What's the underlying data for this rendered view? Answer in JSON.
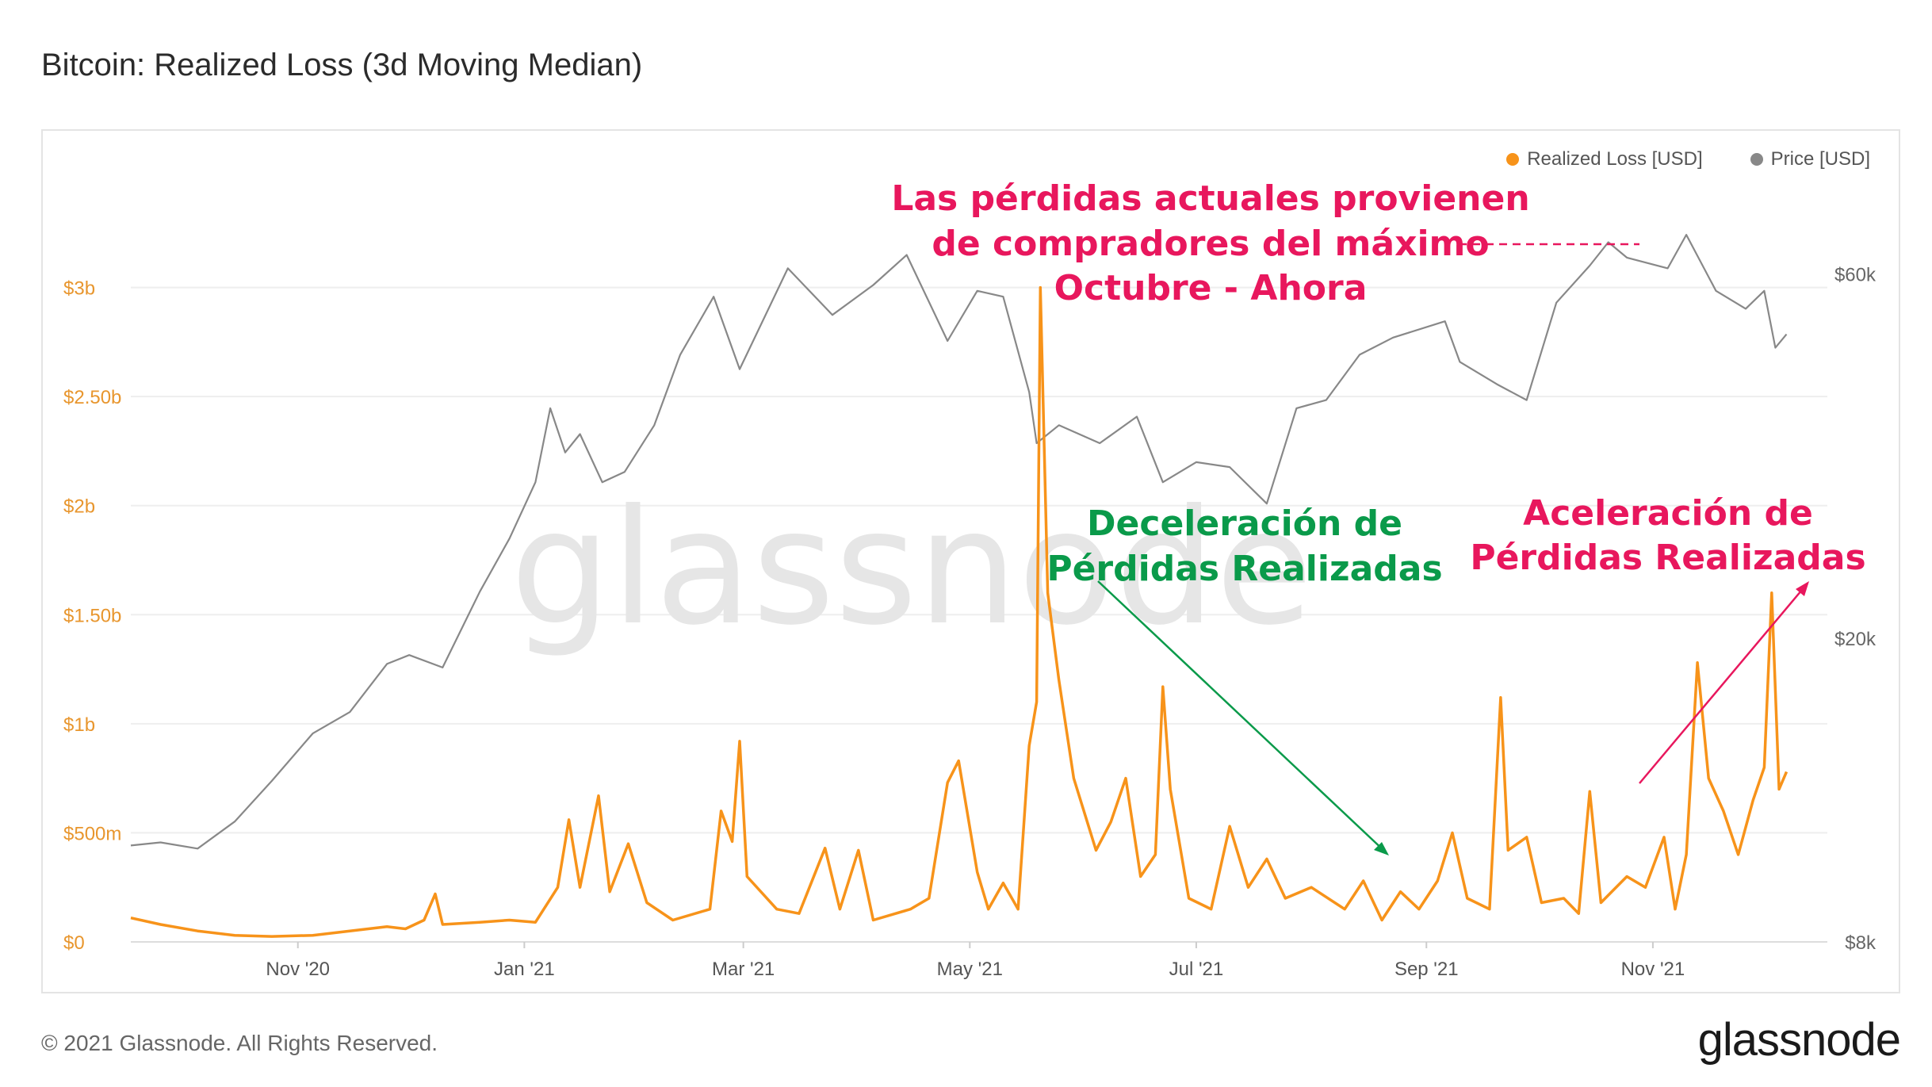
{
  "title": "Bitcoin: Realized Loss (3d Moving Median)",
  "footer": "© 2021 Glassnode. All Rights Reserved.",
  "brand": "glassnode",
  "watermark": "glassnode",
  "legend": [
    {
      "label": "Realized Loss [USD]",
      "color": "#f7931a"
    },
    {
      "label": "Price [USD]",
      "color": "#888888"
    }
  ],
  "annotations": {
    "top_red": [
      "Las pérdidas actuales provienen",
      "de compradores del máximo",
      "Octubre - Ahora"
    ],
    "green": [
      "Deceleración de",
      "Pérdidas Realizadas"
    ],
    "right_red": [
      "Aceleración de",
      "Pérdidas Realizadas"
    ]
  },
  "chart_data": {
    "type": "line",
    "title": "Bitcoin: Realized Loss (3d Moving Median)",
    "x_range": [
      "2020-09-17",
      "2021-12-18"
    ],
    "x_ticks": [
      {
        "label": "Nov '20",
        "date": "2020-11-01"
      },
      {
        "label": "Jan '21",
        "date": "2021-01-01"
      },
      {
        "label": "Mar '21",
        "date": "2021-03-01"
      },
      {
        "label": "May '21",
        "date": "2021-05-01"
      },
      {
        "label": "Jul '21",
        "date": "2021-07-01"
      },
      {
        "label": "Sep '21",
        "date": "2021-09-01"
      },
      {
        "label": "Nov '21",
        "date": "2021-11-01"
      }
    ],
    "y_left": {
      "ylim": [
        0,
        3500000000
      ],
      "ticks": [
        {
          "label": "$0",
          "value": 0
        },
        {
          "label": "$500m",
          "value": 500000000
        },
        {
          "label": "$1b",
          "value": 1000000000
        },
        {
          "label": "$1.50b",
          "value": 1500000000
        },
        {
          "label": "$2b",
          "value": 2000000000
        },
        {
          "label": "$2.50b",
          "value": 2500000000
        },
        {
          "label": "$3b",
          "value": 3000000000
        }
      ]
    },
    "y_right": {
      "scale": "log",
      "ylim": [
        8000,
        80000
      ],
      "ticks": [
        {
          "label": "$8k",
          "value": 8000
        },
        {
          "label": "$20k",
          "value": 20000
        },
        {
          "label": "$60k",
          "value": 60000
        }
      ]
    },
    "series": [
      {
        "name": "Realized Loss [USD]",
        "axis": "left",
        "color": "#f7931a",
        "points": [
          [
            "2020-09-17",
            110000000
          ],
          [
            "2020-09-25",
            80000000
          ],
          [
            "2020-10-05",
            50000000
          ],
          [
            "2020-10-15",
            30000000
          ],
          [
            "2020-10-25",
            25000000
          ],
          [
            "2020-11-05",
            30000000
          ],
          [
            "2020-11-15",
            50000000
          ],
          [
            "2020-11-25",
            70000000
          ],
          [
            "2020-11-30",
            60000000
          ],
          [
            "2020-12-05",
            100000000
          ],
          [
            "2020-12-08",
            220000000
          ],
          [
            "2020-12-10",
            80000000
          ],
          [
            "2020-12-20",
            90000000
          ],
          [
            "2020-12-28",
            100000000
          ],
          [
            "2021-01-04",
            90000000
          ],
          [
            "2021-01-10",
            250000000
          ],
          [
            "2021-01-13",
            560000000
          ],
          [
            "2021-01-16",
            250000000
          ],
          [
            "2021-01-21",
            670000000
          ],
          [
            "2021-01-24",
            230000000
          ],
          [
            "2021-01-29",
            450000000
          ],
          [
            "2021-02-03",
            180000000
          ],
          [
            "2021-02-10",
            100000000
          ],
          [
            "2021-02-20",
            150000000
          ],
          [
            "2021-02-23",
            600000000
          ],
          [
            "2021-02-26",
            460000000
          ],
          [
            "2021-02-28",
            920000000
          ],
          [
            "2021-03-02",
            300000000
          ],
          [
            "2021-03-10",
            150000000
          ],
          [
            "2021-03-16",
            130000000
          ],
          [
            "2021-03-23",
            430000000
          ],
          [
            "2021-03-27",
            150000000
          ],
          [
            "2021-04-01",
            420000000
          ],
          [
            "2021-04-05",
            100000000
          ],
          [
            "2021-04-15",
            150000000
          ],
          [
            "2021-04-20",
            200000000
          ],
          [
            "2021-04-25",
            730000000
          ],
          [
            "2021-04-28",
            830000000
          ],
          [
            "2021-05-03",
            320000000
          ],
          [
            "2021-05-06",
            150000000
          ],
          [
            "2021-05-10",
            270000000
          ],
          [
            "2021-05-14",
            150000000
          ],
          [
            "2021-05-17",
            900000000
          ],
          [
            "2021-05-19",
            1100000000
          ],
          [
            "2021-05-20",
            3000000000
          ],
          [
            "2021-05-22",
            1600000000
          ],
          [
            "2021-05-25",
            1200000000
          ],
          [
            "2021-05-29",
            750000000
          ],
          [
            "2021-06-04",
            420000000
          ],
          [
            "2021-06-08",
            550000000
          ],
          [
            "2021-06-12",
            750000000
          ],
          [
            "2021-06-16",
            300000000
          ],
          [
            "2021-06-20",
            400000000
          ],
          [
            "2021-06-22",
            1170000000
          ],
          [
            "2021-06-24",
            700000000
          ],
          [
            "2021-06-29",
            200000000
          ],
          [
            "2021-07-05",
            150000000
          ],
          [
            "2021-07-10",
            530000000
          ],
          [
            "2021-07-15",
            250000000
          ],
          [
            "2021-07-20",
            380000000
          ],
          [
            "2021-07-25",
            200000000
          ],
          [
            "2021-08-01",
            250000000
          ],
          [
            "2021-08-10",
            150000000
          ],
          [
            "2021-08-15",
            280000000
          ],
          [
            "2021-08-20",
            100000000
          ],
          [
            "2021-08-25",
            230000000
          ],
          [
            "2021-08-30",
            150000000
          ],
          [
            "2021-09-04",
            280000000
          ],
          [
            "2021-09-08",
            500000000
          ],
          [
            "2021-09-12",
            200000000
          ],
          [
            "2021-09-18",
            150000000
          ],
          [
            "2021-09-21",
            1120000000
          ],
          [
            "2021-09-23",
            420000000
          ],
          [
            "2021-09-28",
            480000000
          ],
          [
            "2021-10-02",
            180000000
          ],
          [
            "2021-10-08",
            200000000
          ],
          [
            "2021-10-12",
            130000000
          ],
          [
            "2021-10-15",
            690000000
          ],
          [
            "2021-10-18",
            180000000
          ],
          [
            "2021-10-25",
            300000000
          ],
          [
            "2021-10-30",
            250000000
          ],
          [
            "2021-11-04",
            480000000
          ],
          [
            "2021-11-07",
            150000000
          ],
          [
            "2021-11-10",
            400000000
          ],
          [
            "2021-11-13",
            1280000000
          ],
          [
            "2021-11-16",
            750000000
          ],
          [
            "2021-11-20",
            600000000
          ],
          [
            "2021-11-24",
            400000000
          ],
          [
            "2021-11-28",
            650000000
          ],
          [
            "2021-12-01",
            800000000
          ],
          [
            "2021-12-03",
            1600000000
          ],
          [
            "2021-12-05",
            700000000
          ],
          [
            "2021-12-07",
            780000000
          ]
        ]
      },
      {
        "name": "Price [USD]",
        "axis": "right",
        "color": "#888888",
        "points": [
          [
            "2020-09-17",
            10700
          ],
          [
            "2020-09-25",
            10800
          ],
          [
            "2020-10-05",
            10600
          ],
          [
            "2020-10-15",
            11500
          ],
          [
            "2020-10-25",
            13000
          ],
          [
            "2020-11-05",
            15000
          ],
          [
            "2020-11-15",
            16000
          ],
          [
            "2020-11-25",
            18500
          ],
          [
            "2020-12-01",
            19000
          ],
          [
            "2020-12-10",
            18300
          ],
          [
            "2020-12-20",
            23000
          ],
          [
            "2020-12-28",
            27000
          ],
          [
            "2021-01-04",
            32000
          ],
          [
            "2021-01-08",
            40000
          ],
          [
            "2021-01-12",
            35000
          ],
          [
            "2021-01-16",
            37000
          ],
          [
            "2021-01-22",
            32000
          ],
          [
            "2021-01-28",
            33000
          ],
          [
            "2021-02-05",
            38000
          ],
          [
            "2021-02-12",
            47000
          ],
          [
            "2021-02-21",
            56000
          ],
          [
            "2021-02-28",
            45000
          ],
          [
            "2021-03-13",
            61000
          ],
          [
            "2021-03-25",
            53000
          ],
          [
            "2021-04-05",
            58000
          ],
          [
            "2021-04-14",
            63500
          ],
          [
            "2021-04-25",
            49000
          ],
          [
            "2021-05-03",
            57000
          ],
          [
            "2021-05-10",
            56000
          ],
          [
            "2021-05-17",
            42000
          ],
          [
            "2021-05-19",
            36000
          ],
          [
            "2021-05-25",
            38000
          ],
          [
            "2021-06-05",
            36000
          ],
          [
            "2021-06-15",
            39000
          ],
          [
            "2021-06-22",
            32000
          ],
          [
            "2021-07-01",
            34000
          ],
          [
            "2021-07-10",
            33500
          ],
          [
            "2021-07-20",
            30000
          ],
          [
            "2021-07-28",
            40000
          ],
          [
            "2021-08-05",
            41000
          ],
          [
            "2021-08-14",
            47000
          ],
          [
            "2021-08-23",
            49500
          ],
          [
            "2021-09-06",
            52000
          ],
          [
            "2021-09-10",
            46000
          ],
          [
            "2021-09-20",
            43000
          ],
          [
            "2021-09-28",
            41000
          ],
          [
            "2021-10-06",
            55000
          ],
          [
            "2021-10-15",
            61500
          ],
          [
            "2021-10-20",
            66000
          ],
          [
            "2021-10-25",
            63000
          ],
          [
            "2021-11-05",
            61000
          ],
          [
            "2021-11-10",
            67500
          ],
          [
            "2021-11-18",
            57000
          ],
          [
            "2021-11-26",
            54000
          ],
          [
            "2021-12-01",
            57000
          ],
          [
            "2021-12-04",
            48000
          ],
          [
            "2021-12-07",
            50000
          ]
        ]
      }
    ]
  }
}
